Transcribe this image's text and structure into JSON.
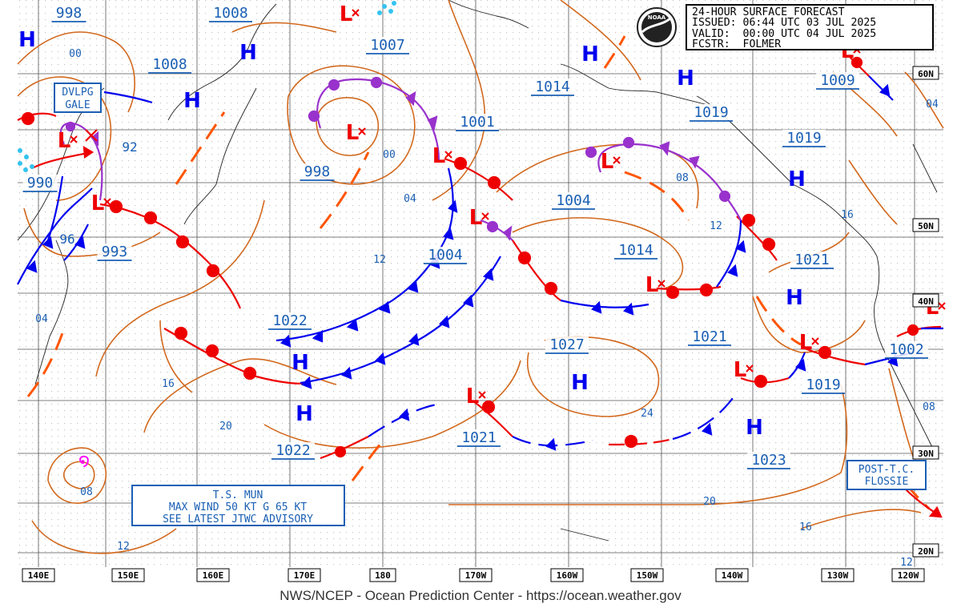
{
  "header": {
    "line1": "24-HOUR SURFACE FORECAST",
    "line2": "ISSUED: 06:44 UTC 03 JUL 2025",
    "line3": "VALID:  00:00 UTC 04 JUL 2025",
    "line4": "FCSTR:  FOLMER"
  },
  "logo": {
    "text": "NOAA"
  },
  "footer": "NWS/NCEP - Ocean Prediction Center - https://ocean.weather.gov",
  "lon_labels": [
    "140E",
    "150E",
    "160E",
    "170E",
    "180",
    "170W",
    "160W",
    "150W",
    "140W",
    "130W",
    "120W"
  ],
  "lat_labels": [
    "60N",
    "50N",
    "40N",
    "30N",
    "20N"
  ],
  "pressure_labels": [
    "998",
    "1008",
    "1008",
    "1007",
    "1014",
    "1009",
    "1019",
    "1001",
    "1019",
    "998",
    "1004",
    "1004",
    "1014",
    "1021",
    "1022",
    "1027",
    "1021",
    "1002",
    "1019",
    "1022",
    "1021",
    "1023",
    "990",
    "993"
  ],
  "contour_labels": [
    "00",
    "92",
    "96",
    "04",
    "00",
    "04",
    "12",
    "08",
    "12",
    "16",
    "16",
    "20",
    "24",
    "20",
    "16",
    "08",
    "08",
    "12",
    "12",
    "04"
  ],
  "centers": {
    "high": "H",
    "low": "L"
  },
  "boxes": {
    "dvlpg": {
      "line1": "DVLPG",
      "line2": "GALE"
    },
    "ts_mun": {
      "line1": "T.S. MUN",
      "line2": "MAX WIND 50 KT G 65 KT",
      "line3": "SEE LATEST JTWC ADVISORY"
    },
    "flossie": {
      "line1": "POST-T.C.",
      "line2": "FLOSSIE"
    }
  },
  "colors": {
    "isobar": "#d2691e",
    "high": "#0000ee",
    "low": "#ee0000",
    "warm_front": "#ee0000",
    "cold_front": "#0000ee",
    "occluded_front": "#9932cc",
    "trough": "#ff5500",
    "label": "#1a5fb4",
    "tropical": "#ff00ff"
  }
}
